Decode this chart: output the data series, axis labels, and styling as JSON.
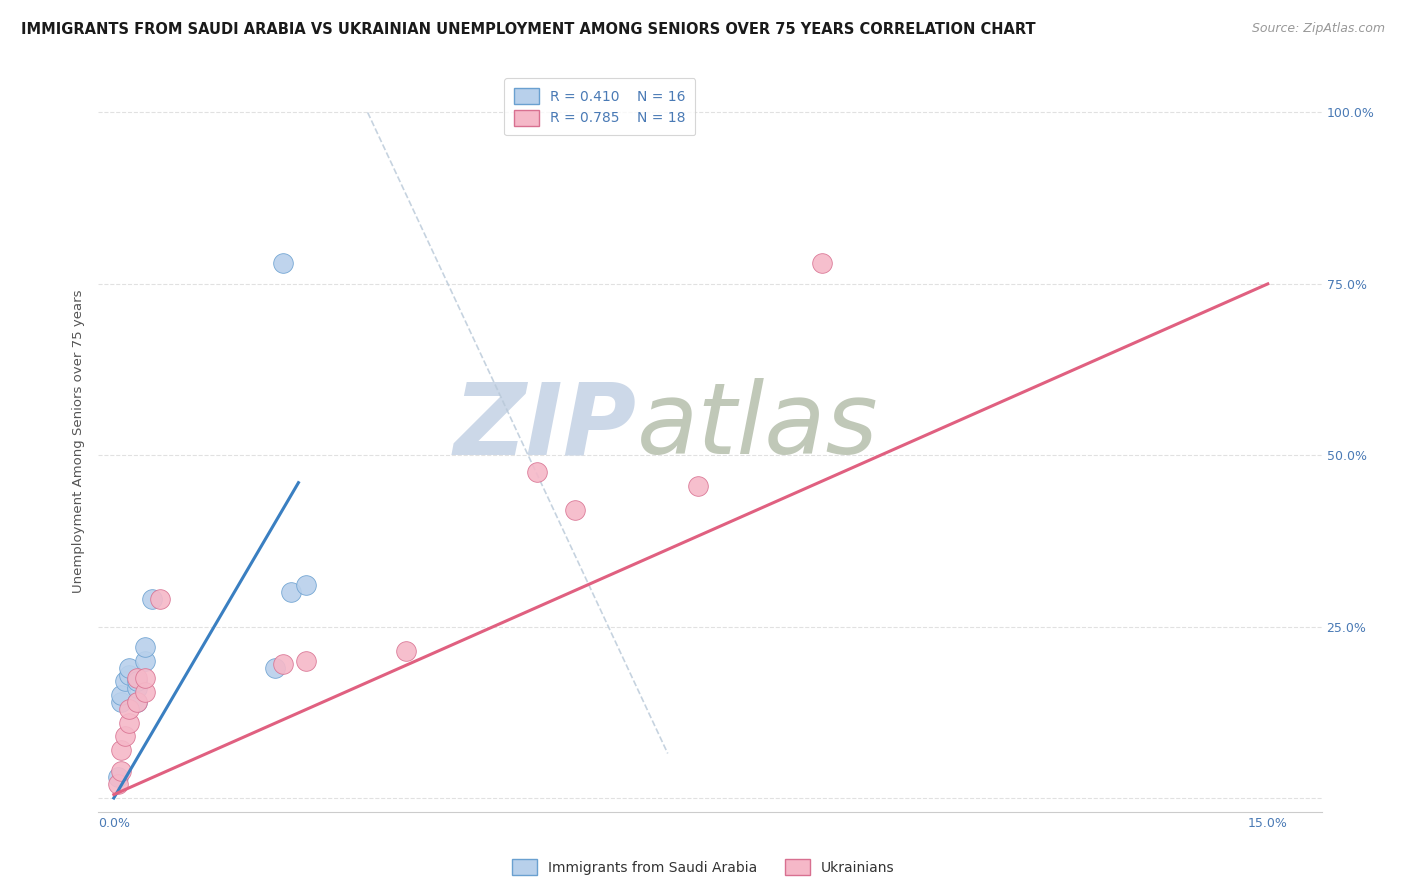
{
  "title": "IMMIGRANTS FROM SAUDI ARABIA VS UKRAINIAN UNEMPLOYMENT AMONG SENIORS OVER 75 YEARS CORRELATION CHART",
  "source": "Source: ZipAtlas.com",
  "ylabel_label": "Unemployment Among Seniors over 75 years",
  "blue_R": 0.41,
  "blue_N": 16,
  "pink_R": 0.785,
  "pink_N": 18,
  "legend_label_blue": "Immigrants from Saudi Arabia",
  "legend_label_pink": "Ukrainians",
  "blue_scatter_x": [
    0.0005,
    0.001,
    0.001,
    0.0015,
    0.002,
    0.002,
    0.003,
    0.003,
    0.003,
    0.004,
    0.004,
    0.005,
    0.021,
    0.023,
    0.025,
    0.022
  ],
  "blue_scatter_y": [
    0.03,
    0.14,
    0.15,
    0.17,
    0.18,
    0.19,
    0.14,
    0.16,
    0.17,
    0.2,
    0.22,
    0.29,
    0.19,
    0.3,
    0.31,
    0.78
  ],
  "pink_scatter_x": [
    0.0005,
    0.001,
    0.001,
    0.0015,
    0.002,
    0.002,
    0.003,
    0.003,
    0.004,
    0.004,
    0.006,
    0.022,
    0.025,
    0.038,
    0.055,
    0.06,
    0.076,
    0.092
  ],
  "pink_scatter_y": [
    0.02,
    0.04,
    0.07,
    0.09,
    0.11,
    0.13,
    0.14,
    0.175,
    0.155,
    0.175,
    0.29,
    0.195,
    0.2,
    0.215,
    0.475,
    0.42,
    0.455,
    0.78
  ],
  "blue_line_x": [
    0.0,
    0.024
  ],
  "blue_line_y": [
    0.0,
    0.46
  ],
  "pink_line_x": [
    0.0,
    0.15
  ],
  "pink_line_y": [
    0.005,
    0.75
  ],
  "dash_line_x": [
    0.033,
    0.072
  ],
  "dash_line_y": [
    1.0,
    0.065
  ],
  "blue_color": "#b8d0eb",
  "pink_color": "#f5b8c8",
  "blue_line_color": "#3a7fc1",
  "pink_line_color": "#e06080",
  "blue_edge_color": "#6aa0d0",
  "pink_edge_color": "#d87090",
  "grid_color": "#d5d5d5",
  "watermark_zip": "ZIP",
  "watermark_atlas": "atlas",
  "watermark_color_zip": "#ccd8e8",
  "watermark_color_atlas": "#c0c8b8",
  "background_color": "#ffffff",
  "title_fontsize": 10.5,
  "source_fontsize": 9,
  "legend_fontsize": 10,
  "axis_label_fontsize": 9.5,
  "tick_fontsize": 9,
  "marker_size": 200,
  "x_tick_positions": [
    0.0,
    0.03,
    0.06,
    0.09,
    0.12,
    0.15
  ],
  "x_tick_labels": [
    "0.0%",
    "",
    "",
    "",
    "",
    "15.0%"
  ],
  "y_tick_positions": [
    0.0,
    0.25,
    0.5,
    0.75,
    1.0
  ],
  "y_tick_labels_right": [
    "",
    "25.0%",
    "50.0%",
    "75.0%",
    "100.0%"
  ],
  "xlim": [
    -0.002,
    0.157
  ],
  "ylim": [
    -0.02,
    1.06
  ]
}
